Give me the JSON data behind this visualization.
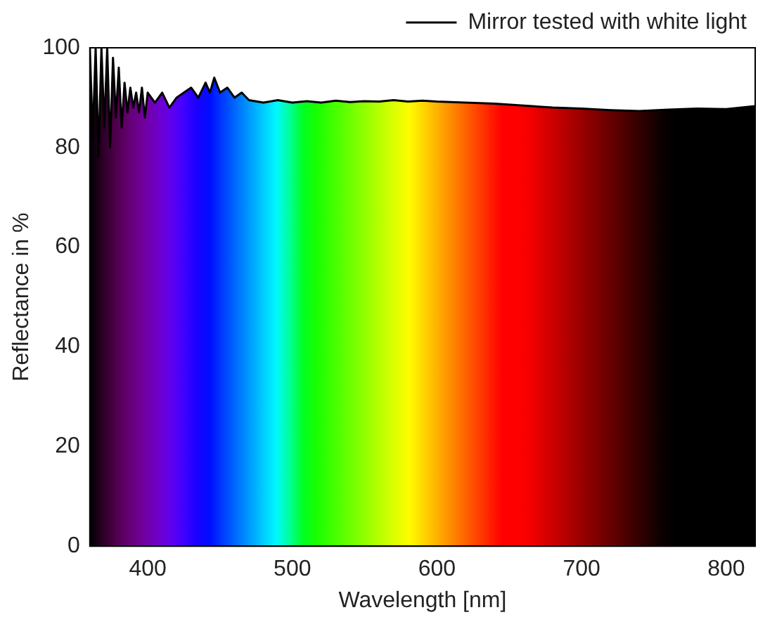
{
  "chart_data": {
    "type": "line",
    "xlabel": "Wavelength [nm]",
    "ylabel": "Reflectance in %",
    "x": [
      360,
      362,
      364,
      366,
      368,
      370,
      372,
      374,
      376,
      378,
      380,
      382,
      384,
      386,
      388,
      390,
      392,
      394,
      396,
      398,
      400,
      405,
      410,
      415,
      420,
      425,
      430,
      435,
      440,
      443,
      446,
      450,
      455,
      460,
      465,
      470,
      480,
      490,
      500,
      510,
      520,
      530,
      540,
      550,
      560,
      570,
      580,
      590,
      600,
      620,
      640,
      660,
      680,
      700,
      720,
      740,
      760,
      780,
      800,
      820
    ],
    "series": [
      {
        "name": "Mirror tested with white light",
        "color": "#000000",
        "values": [
          100,
          82,
          100,
          78,
          100,
          84,
          100,
          80,
          98,
          86,
          96,
          84,
          93,
          87,
          92,
          88,
          91,
          87,
          92,
          86,
          91,
          89,
          91,
          88,
          90,
          91,
          92,
          90,
          93,
          91,
          94,
          91,
          92,
          90,
          91,
          89.5,
          89,
          89.5,
          89,
          89.3,
          89,
          89.4,
          89.1,
          89.3,
          89.2,
          89.5,
          89.2,
          89.4,
          89.2,
          89,
          88.8,
          88.4,
          88,
          87.8,
          87.5,
          87.3,
          87.6,
          87.8,
          87.7,
          88.3
        ]
      }
    ],
    "xlim": [
      360,
      820
    ],
    "ylim": [
      0,
      100
    ],
    "xticks": [
      400,
      500,
      600,
      700,
      800
    ],
    "yticks": [
      0,
      20,
      40,
      60,
      80,
      100
    ],
    "legend": "top right"
  }
}
